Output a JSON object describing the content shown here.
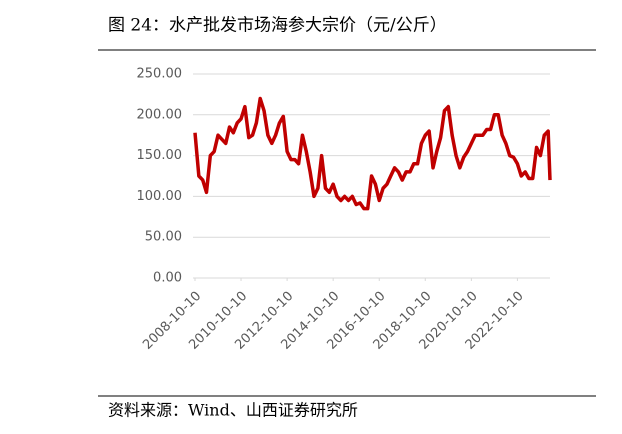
{
  "chart_data": {
    "type": "line",
    "title": "图 24：水产批发市场海参大宗价（元/公斤）",
    "source": "资料来源：Wind、山西证券研究所",
    "x": [
      "2008-10-10",
      "2008-12-10",
      "2009-02-10",
      "2009-04-10",
      "2009-06-10",
      "2009-08-10",
      "2009-10-10",
      "2009-12-10",
      "2010-02-10",
      "2010-04-10",
      "2010-06-10",
      "2010-08-10",
      "2010-10-10",
      "2010-12-10",
      "2011-02-10",
      "2011-04-10",
      "2011-06-10",
      "2011-08-10",
      "2011-10-10",
      "2011-12-10",
      "2012-02-10",
      "2012-04-10",
      "2012-06-10",
      "2012-08-10",
      "2012-10-10",
      "2012-12-10",
      "2013-02-10",
      "2013-04-10",
      "2013-06-10",
      "2013-08-10",
      "2013-10-10",
      "2013-12-10",
      "2014-02-10",
      "2014-04-10",
      "2014-06-10",
      "2014-08-10",
      "2014-10-10",
      "2014-12-10",
      "2015-02-10",
      "2015-04-10",
      "2015-06-10",
      "2015-08-10",
      "2015-10-10",
      "2015-12-10",
      "2016-02-10",
      "2016-04-10",
      "2016-06-10",
      "2016-08-10",
      "2016-10-10",
      "2016-12-10",
      "2017-02-10",
      "2017-04-10",
      "2017-06-10",
      "2017-08-10",
      "2017-10-10",
      "2017-12-10",
      "2018-02-10",
      "2018-04-10",
      "2018-06-10",
      "2018-08-10",
      "2018-10-10",
      "2018-12-10",
      "2019-02-10",
      "2019-04-10",
      "2019-06-10",
      "2019-08-10",
      "2019-10-10",
      "2019-12-10",
      "2020-02-10",
      "2020-04-10",
      "2020-06-10",
      "2020-08-10",
      "2020-10-10",
      "2020-12-10",
      "2021-02-10",
      "2021-04-10",
      "2021-06-10",
      "2021-08-10",
      "2021-10-10",
      "2021-12-10",
      "2022-02-10",
      "2022-04-10",
      "2022-06-10",
      "2022-08-10",
      "2022-10-10",
      "2022-12-10",
      "2023-02-10",
      "2023-04-10",
      "2023-06-10",
      "2023-08-10",
      "2023-10-10",
      "2023-12-10",
      "2024-02-10",
      "2024-03-10"
    ],
    "series": [
      {
        "name": "海参大宗价",
        "color": "#c00000",
        "values": [
          178,
          125,
          120,
          105,
          150,
          155,
          175,
          170,
          165,
          185,
          178,
          190,
          195,
          210,
          172,
          175,
          190,
          220,
          205,
          175,
          165,
          175,
          190,
          198,
          155,
          145,
          145,
          140,
          175,
          155,
          130,
          100,
          110,
          150,
          110,
          105,
          115,
          100,
          95,
          100,
          95,
          100,
          90,
          92,
          85,
          85,
          125,
          115,
          95,
          110,
          115,
          125,
          135,
          130,
          120,
          130,
          130,
          140,
          140,
          165,
          175,
          180,
          135,
          155,
          172,
          205,
          210,
          175,
          150,
          135,
          148,
          155,
          165,
          175,
          175,
          175,
          182,
          182,
          200,
          200,
          175,
          165,
          150,
          148,
          140,
          125,
          130,
          122,
          122,
          160,
          150,
          175,
          180,
          120
        ]
      }
    ],
    "xlim": [
      "2008-10-10",
      "2024-03-10"
    ],
    "xticks": [
      "2008-10-10",
      "2010-10-10",
      "2012-10-10",
      "2014-10-10",
      "2016-10-10",
      "2018-10-10",
      "2020-10-10",
      "2022-10-10"
    ],
    "ylim": [
      0,
      250
    ],
    "yticks": [
      {
        "value": 0,
        "label": "0.00"
      },
      {
        "value": 50,
        "label": "50.00"
      },
      {
        "value": 100,
        "label": "100.00"
      },
      {
        "value": 150,
        "label": "150.00"
      },
      {
        "value": 200,
        "label": "200.00"
      },
      {
        "value": 250,
        "label": "250.00"
      }
    ],
    "grid": true
  }
}
